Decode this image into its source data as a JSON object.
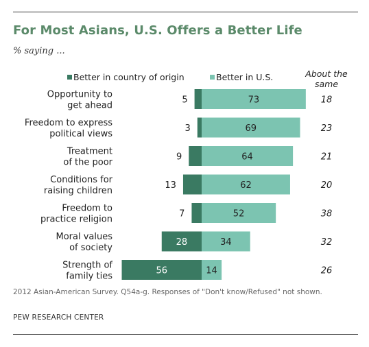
{
  "title": "For Most Asians, U.S. Offers a Better Life",
  "subtitle": "% saying ...",
  "note": "2012 Asian-American Survey. Q54a-g. Responses of \"Don't know/Refused\" not shown.",
  "source": "PEW RESEARCH CENTER",
  "colors": {
    "origin": "#3a7a62",
    "us": "#7cc4b1",
    "title": "#5b8a6a"
  },
  "chart_data": {
    "type": "bar",
    "orientation": "horizontal-diverging",
    "categories": [
      [
        "Opportunity to",
        "get ahead"
      ],
      [
        "Freedom to express",
        "political views"
      ],
      [
        "Treatment",
        "of the poor"
      ],
      [
        "Conditions for",
        "raising children"
      ],
      [
        "Freedom to",
        "practice religion"
      ],
      [
        "Moral values",
        "of society"
      ],
      [
        "Strength of",
        "family ties"
      ]
    ],
    "series": [
      {
        "name": "Better in country of origin",
        "values": [
          5,
          3,
          9,
          13,
          7,
          28,
          56
        ]
      },
      {
        "name": "Better in U.S.",
        "values": [
          73,
          69,
          64,
          62,
          52,
          34,
          14
        ]
      }
    ],
    "about_same": {
      "header": [
        "About the",
        "same"
      ],
      "values": [
        18,
        23,
        21,
        20,
        38,
        32,
        26
      ]
    },
    "legend_position": "top"
  }
}
